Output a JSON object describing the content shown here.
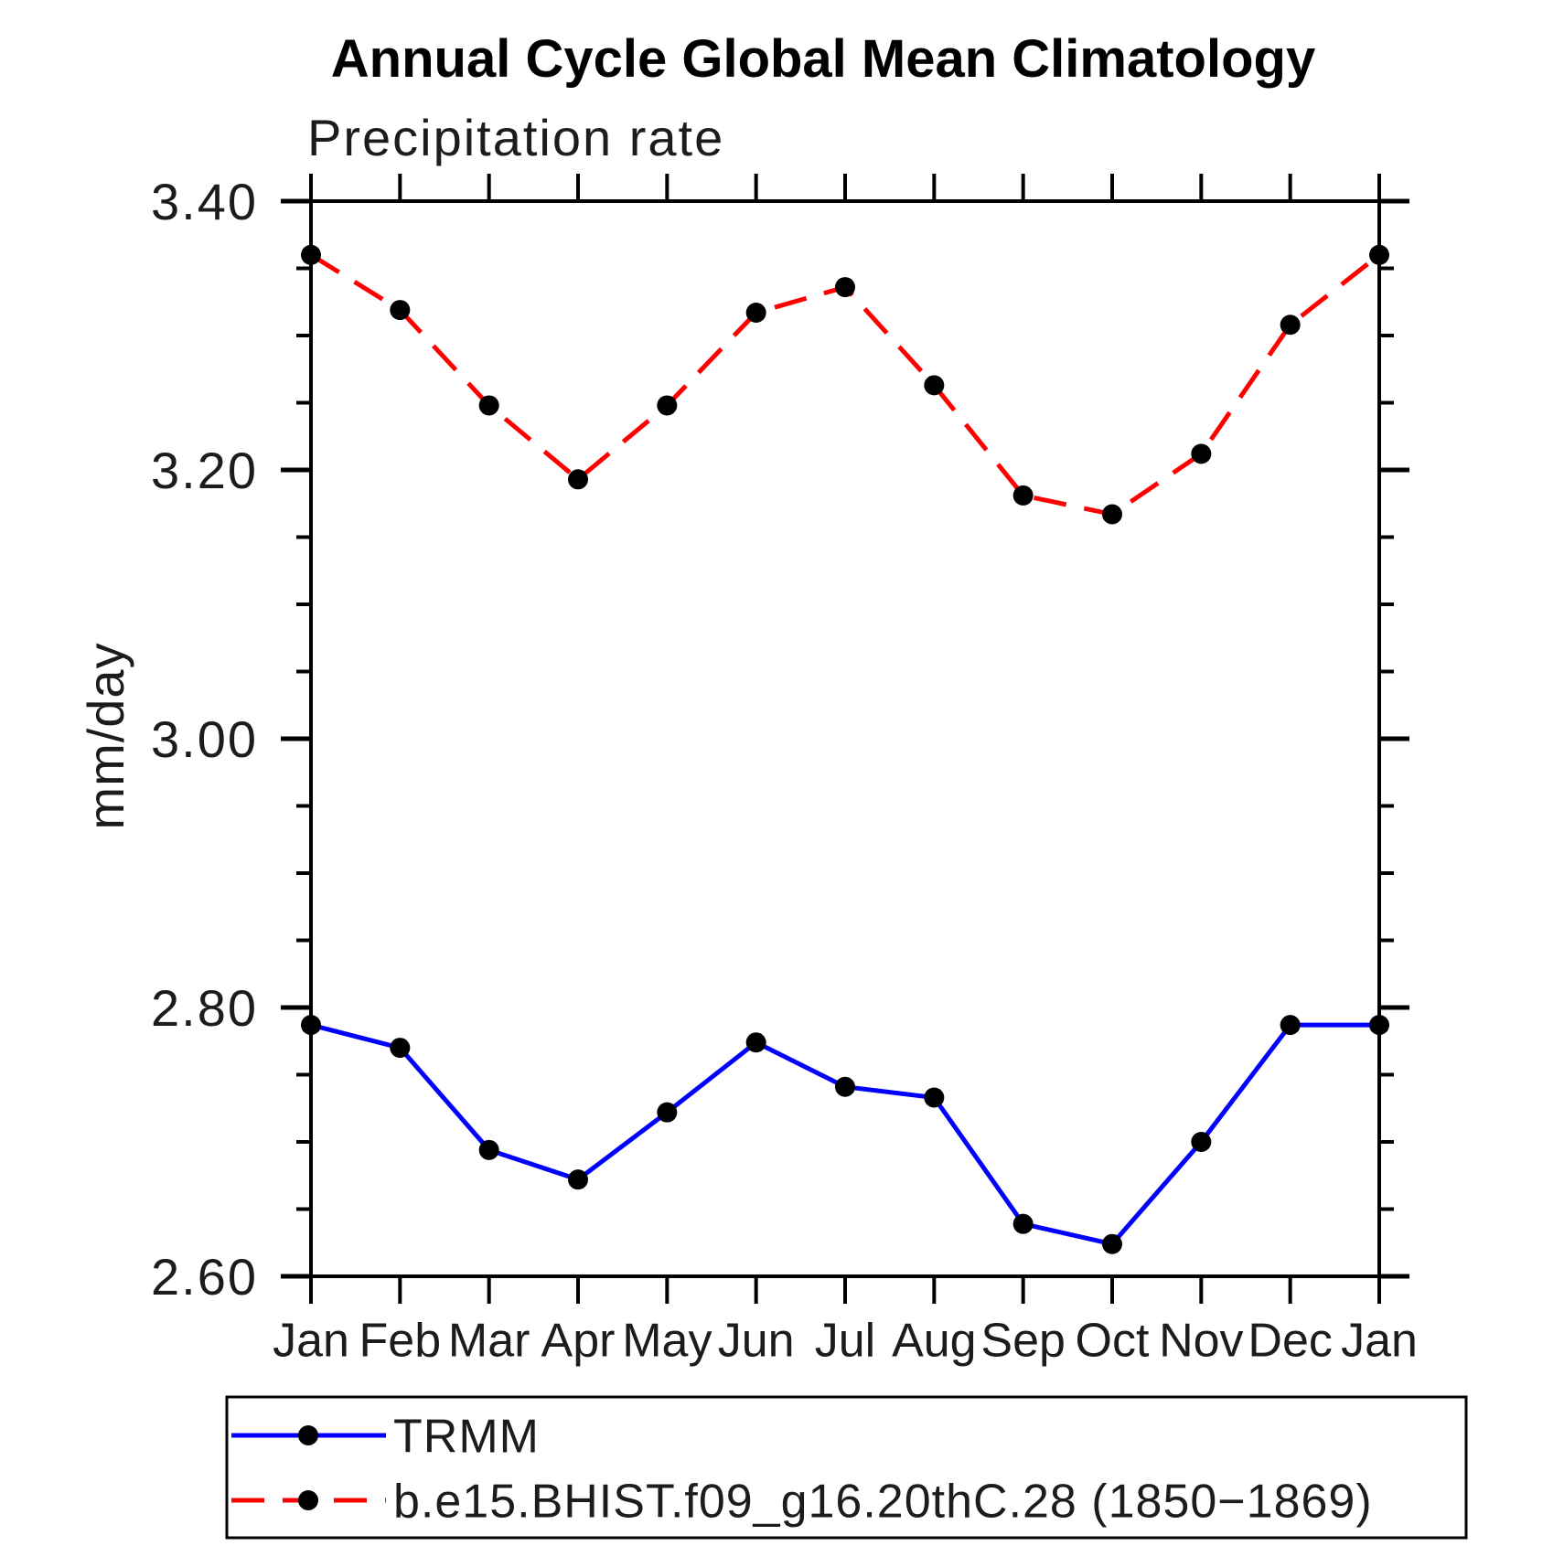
{
  "chart_data": {
    "type": "line",
    "title": "Annual Cycle Global Mean Climatology",
    "subtitle": "Precipitation rate",
    "ylabel": "mm/day",
    "xlabel": "",
    "categories": [
      "Jan",
      "Feb",
      "Mar",
      "Apr",
      "May",
      "Jun",
      "Jul",
      "Aug",
      "Sep",
      "Oct",
      "Nov",
      "Dec",
      "Jan"
    ],
    "series": [
      {
        "name": "TRMM",
        "color": "#0000ff",
        "line_style": "solid",
        "marker": "filled-circle",
        "marker_color": "#000000",
        "values": [
          2.787,
          2.77,
          2.694,
          2.672,
          2.722,
          2.774,
          2.741,
          2.733,
          2.639,
          2.624,
          2.7,
          2.787,
          2.787
        ]
      },
      {
        "name": "b.e15.BHIST.f09_g16.20thC.28 (1850−1869)",
        "color": "#ff0000",
        "line_style": "dashed",
        "marker": "filled-circle",
        "marker_color": "#000000",
        "values": [
          3.36,
          3.319,
          3.248,
          3.193,
          3.248,
          3.317,
          3.336,
          3.263,
          3.181,
          3.167,
          3.212,
          3.308,
          3.36
        ]
      }
    ],
    "ylim": [
      2.6,
      3.4
    ],
    "ytick_values": [
      3.4,
      3.2,
      3.0,
      2.8,
      2.6
    ],
    "ytick_labels": [
      "3.40",
      "3.20",
      "3.00",
      "2.80",
      "2.60"
    ],
    "y_minor_step": 0.05,
    "grid": false,
    "frame": "box-with-outward-ticks",
    "legend_position": "below"
  }
}
